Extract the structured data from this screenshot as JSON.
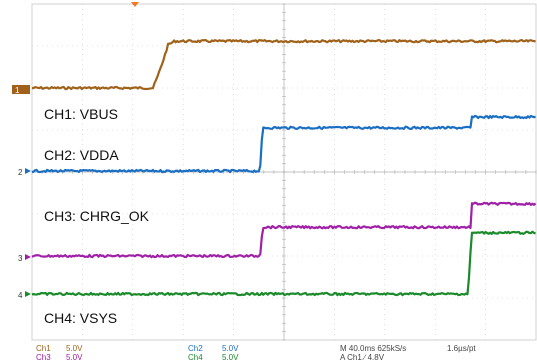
{
  "chart_data": {
    "type": "line",
    "grid": true,
    "x_axis": {
      "range": [
        0,
        400
      ],
      "divisions": 10
    },
    "y_axis": {
      "range": [
        0,
        8
      ],
      "divisions": 8
    },
    "series": [
      {
        "key": "ch1",
        "name": "CH1: VBUS",
        "color": "#a0621a",
        "marker": "1",
        "x": [
          0,
          96,
          100,
          104,
          108,
          113,
          400
        ],
        "y": [
          0,
          0,
          0.35,
          0.75,
          1.2,
          1.3,
          1.3
        ]
      },
      {
        "key": "ch2",
        "name": "CH2: VDDA",
        "color": "#1a6fc4",
        "marker": "2",
        "x": [
          0,
          181,
          183,
          400
        ],
        "y": [
          0,
          0,
          1.2,
          1.2
        ]
      },
      {
        "key": "ch3",
        "name": "CH3: CHRG_OK",
        "color": "#a020a8",
        "marker": "3",
        "x": [
          0,
          181,
          183,
          400
        ],
        "y": [
          0,
          0,
          0.8,
          0.8
        ]
      },
      {
        "key": "ch4",
        "name": "CH4: VSYS",
        "color": "#1a8a2a",
        "marker": "4",
        "x": [
          0,
          346,
          349,
          400
        ],
        "y": [
          0,
          0,
          1.7,
          1.7
        ]
      }
    ],
    "series_steps": {
      "ch2": {
        "x": [
          349,
          350
        ],
        "y": [
          1.5,
          1.5
        ]
      },
      "ch3": {
        "x": [
          349,
          350
        ],
        "y": [
          1.45,
          1.45
        ]
      }
    }
  },
  "status": {
    "ch1": {
      "name": "Ch1",
      "scale": "5.0V"
    },
    "ch2": {
      "name": "Ch2",
      "scale": "5.0V"
    },
    "ch3": {
      "name": "Ch3",
      "scale": "5.0V"
    },
    "ch4": {
      "name": "Ch4",
      "scale": "5.0V"
    },
    "timebase": "M 40.0ms 625kS/s",
    "resolution": "1.6µs/pt",
    "trigger": "A  Ch1  ∕  4.8V"
  }
}
